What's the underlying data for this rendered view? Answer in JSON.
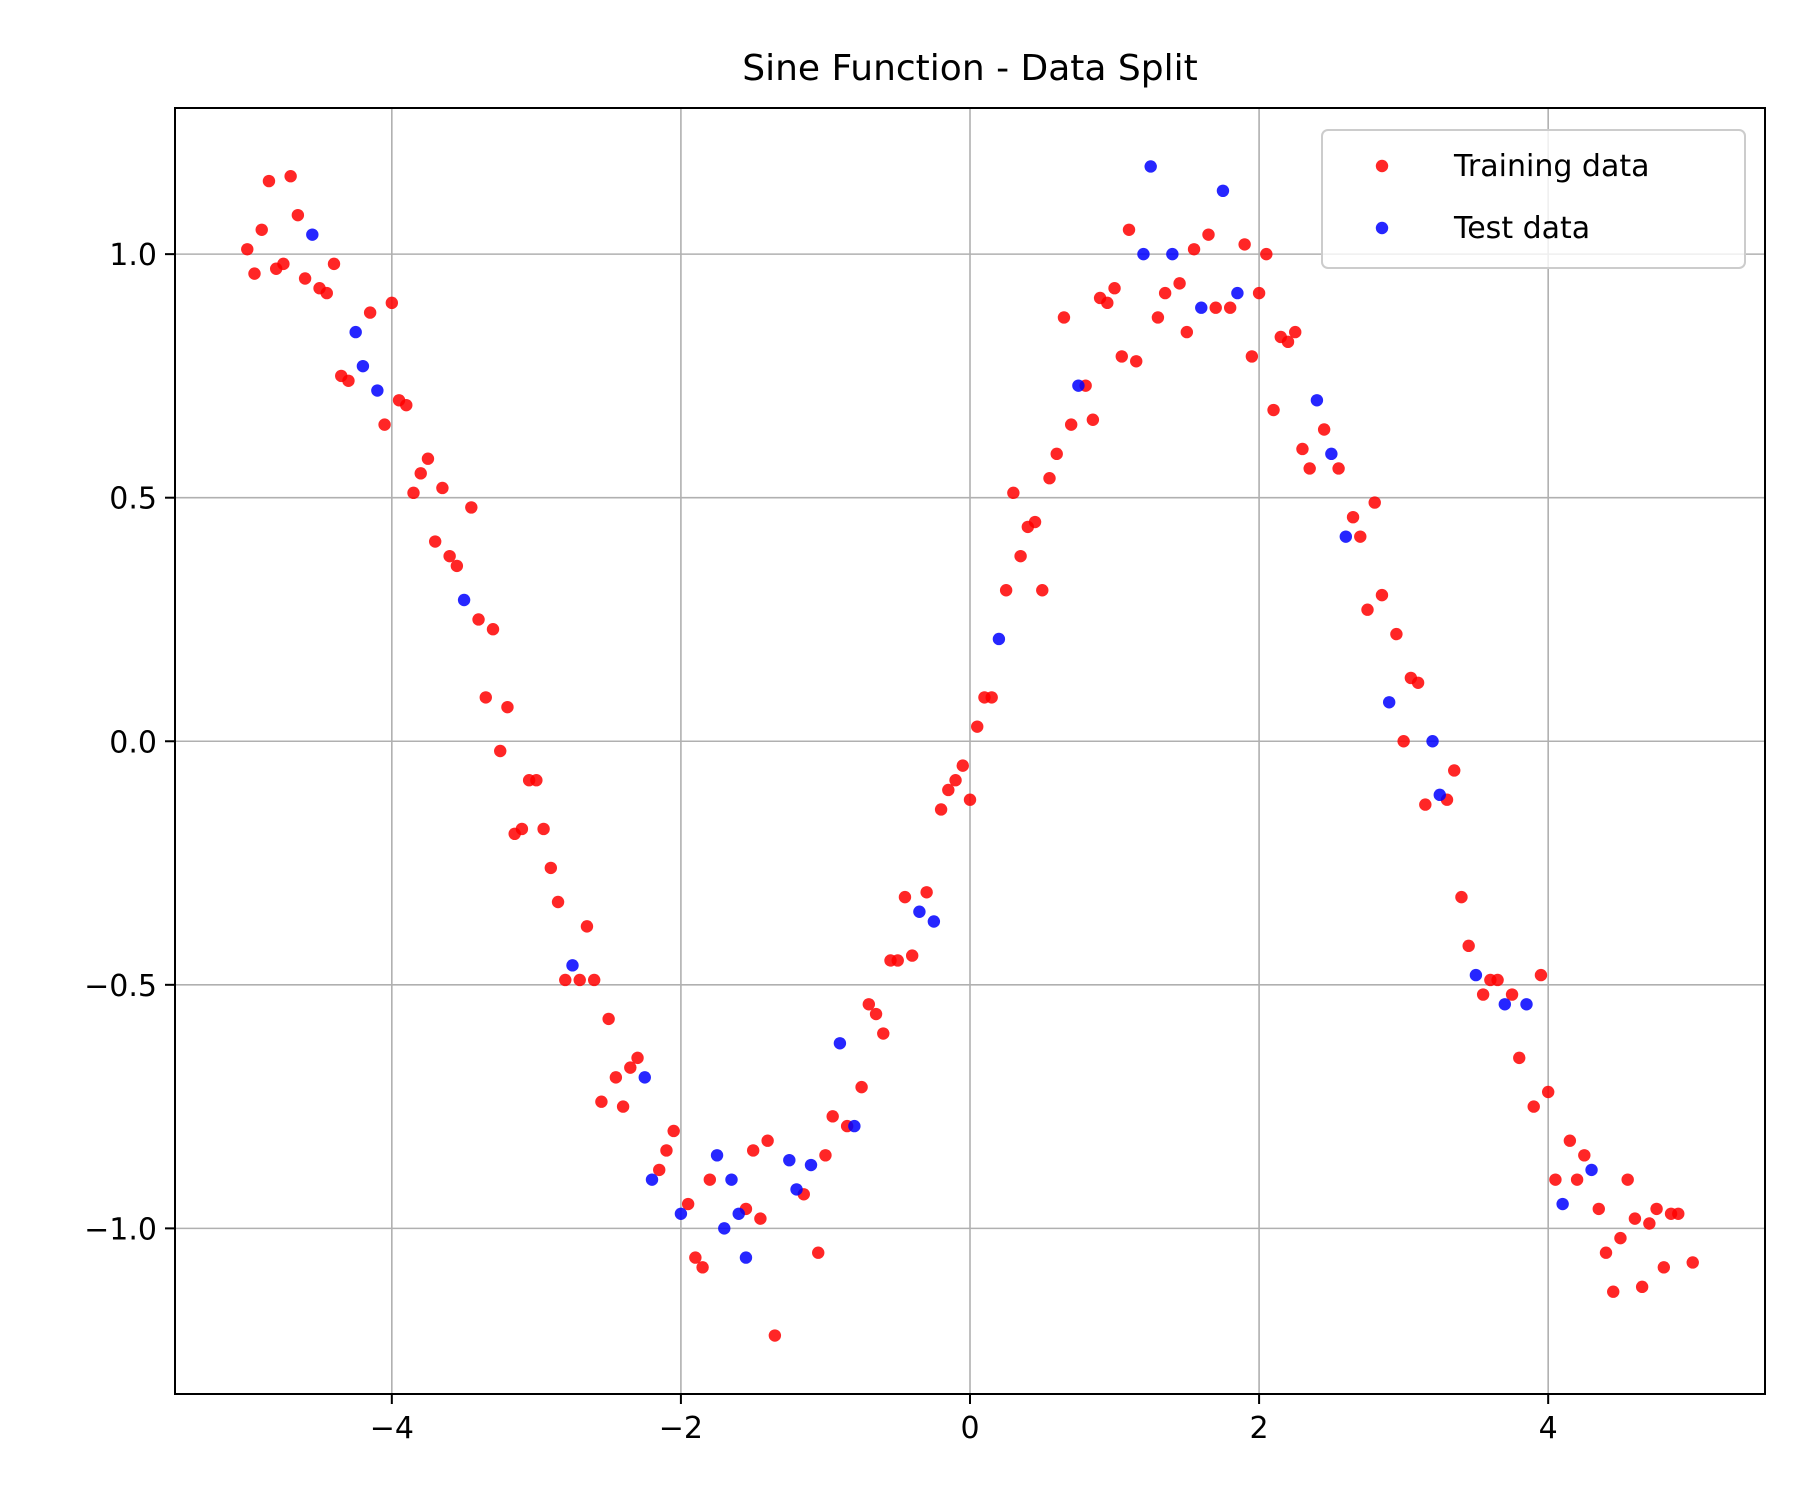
{
  "chart_data": {
    "type": "scatter",
    "title": "Sine Function - Data Split",
    "xlabel": "",
    "ylabel": "",
    "xlim": [
      -5.5,
      5.5
    ],
    "ylim": [
      -1.34,
      1.3
    ],
    "xticks": [
      -4,
      -2,
      0,
      2,
      4
    ],
    "yticks": [
      -1.0,
      -0.5,
      0.0,
      0.5,
      1.0
    ],
    "xtick_labels": [
      "−4",
      "−2",
      "0",
      "2",
      "4"
    ],
    "ytick_labels": [
      "−1.0",
      "−0.5",
      "0.0",
      "0.5",
      "1.0"
    ],
    "grid": true,
    "legend_position": "top-right",
    "series": [
      {
        "name": "Training data",
        "color": "#ff0000",
        "points": [
          [
            -5.0,
            1.01
          ],
          [
            -4.95,
            0.96
          ],
          [
            -4.9,
            1.05
          ],
          [
            -4.85,
            1.15
          ],
          [
            -4.8,
            0.97
          ],
          [
            -4.75,
            0.98
          ],
          [
            -4.7,
            1.16
          ],
          [
            -4.65,
            1.08
          ],
          [
            -4.6,
            0.95
          ],
          [
            -4.5,
            0.93
          ],
          [
            -4.45,
            0.92
          ],
          [
            -4.4,
            0.98
          ],
          [
            -4.35,
            0.75
          ],
          [
            -4.3,
            0.74
          ],
          [
            -4.15,
            0.88
          ],
          [
            -4.05,
            0.65
          ],
          [
            -4.0,
            0.9
          ],
          [
            -3.95,
            0.7
          ],
          [
            -3.9,
            0.69
          ],
          [
            -3.85,
            0.51
          ],
          [
            -3.8,
            0.55
          ],
          [
            -3.75,
            0.58
          ],
          [
            -3.7,
            0.41
          ],
          [
            -3.65,
            0.52
          ],
          [
            -3.6,
            0.38
          ],
          [
            -3.55,
            0.36
          ],
          [
            -3.45,
            0.48
          ],
          [
            -3.4,
            0.25
          ],
          [
            -3.3,
            0.23
          ],
          [
            -3.35,
            0.09
          ],
          [
            -3.25,
            -0.02
          ],
          [
            -3.2,
            0.07
          ],
          [
            -3.15,
            -0.19
          ],
          [
            -3.1,
            -0.18
          ],
          [
            -3.05,
            -0.08
          ],
          [
            -3.0,
            -0.08
          ],
          [
            -2.95,
            -0.18
          ],
          [
            -2.9,
            -0.26
          ],
          [
            -2.85,
            -0.33
          ],
          [
            -2.8,
            -0.49
          ],
          [
            -2.7,
            -0.49
          ],
          [
            -2.65,
            -0.38
          ],
          [
            -2.6,
            -0.49
          ],
          [
            -2.55,
            -0.74
          ],
          [
            -2.5,
            -0.57
          ],
          [
            -2.45,
            -0.69
          ],
          [
            -2.4,
            -0.75
          ],
          [
            -2.35,
            -0.67
          ],
          [
            -2.3,
            -0.65
          ],
          [
            -2.15,
            -0.88
          ],
          [
            -2.1,
            -0.84
          ],
          [
            -2.05,
            -0.8
          ],
          [
            -1.95,
            -0.95
          ],
          [
            -1.9,
            -1.06
          ],
          [
            -1.85,
            -1.08
          ],
          [
            -1.8,
            -0.9
          ],
          [
            -1.55,
            -0.96
          ],
          [
            -1.5,
            -0.84
          ],
          [
            -1.45,
            -0.98
          ],
          [
            -1.4,
            -0.82
          ],
          [
            -1.35,
            -1.22
          ],
          [
            -1.15,
            -0.93
          ],
          [
            -1.05,
            -1.05
          ],
          [
            -1.0,
            -0.85
          ],
          [
            -0.95,
            -0.77
          ],
          [
            -0.85,
            -0.79
          ],
          [
            -0.75,
            -0.71
          ],
          [
            -0.7,
            -0.54
          ],
          [
            -0.65,
            -0.56
          ],
          [
            -0.6,
            -0.6
          ],
          [
            -0.55,
            -0.45
          ],
          [
            -0.5,
            -0.45
          ],
          [
            -0.45,
            -0.32
          ],
          [
            -0.4,
            -0.44
          ],
          [
            -0.3,
            -0.31
          ],
          [
            -0.2,
            -0.14
          ],
          [
            -0.15,
            -0.1
          ],
          [
            -0.1,
            -0.08
          ],
          [
            -0.05,
            -0.05
          ],
          [
            0.0,
            -0.12
          ],
          [
            0.05,
            0.03
          ],
          [
            0.1,
            0.09
          ],
          [
            0.15,
            0.09
          ],
          [
            0.25,
            0.31
          ],
          [
            0.3,
            0.51
          ],
          [
            0.35,
            0.38
          ],
          [
            0.4,
            0.44
          ],
          [
            0.45,
            0.45
          ],
          [
            0.5,
            0.31
          ],
          [
            0.55,
            0.54
          ],
          [
            0.6,
            0.59
          ],
          [
            0.65,
            0.87
          ],
          [
            0.7,
            0.65
          ],
          [
            0.8,
            0.73
          ],
          [
            0.85,
            0.66
          ],
          [
            0.9,
            0.91
          ],
          [
            0.95,
            0.9
          ],
          [
            1.0,
            0.93
          ],
          [
            1.05,
            0.79
          ],
          [
            1.1,
            1.05
          ],
          [
            1.15,
            0.78
          ],
          [
            1.3,
            0.87
          ],
          [
            1.35,
            0.92
          ],
          [
            1.45,
            0.94
          ],
          [
            1.5,
            0.84
          ],
          [
            1.55,
            1.01
          ],
          [
            1.65,
            1.04
          ],
          [
            1.7,
            0.89
          ],
          [
            1.8,
            0.89
          ],
          [
            1.9,
            1.02
          ],
          [
            1.95,
            0.79
          ],
          [
            2.0,
            0.92
          ],
          [
            2.05,
            1.0
          ],
          [
            2.1,
            0.68
          ],
          [
            2.15,
            0.83
          ],
          [
            2.2,
            0.82
          ],
          [
            2.25,
            0.84
          ],
          [
            2.3,
            0.6
          ],
          [
            2.35,
            0.56
          ],
          [
            2.45,
            0.64
          ],
          [
            2.55,
            0.56
          ],
          [
            2.65,
            0.46
          ],
          [
            2.7,
            0.42
          ],
          [
            2.75,
            0.27
          ],
          [
            2.8,
            0.49
          ],
          [
            2.85,
            0.3
          ],
          [
            2.95,
            0.22
          ],
          [
            3.0,
            0.0
          ],
          [
            3.05,
            0.13
          ],
          [
            3.1,
            0.12
          ],
          [
            3.15,
            -0.13
          ],
          [
            3.3,
            -0.12
          ],
          [
            3.35,
            -0.06
          ],
          [
            3.4,
            -0.32
          ],
          [
            3.45,
            -0.42
          ],
          [
            3.55,
            -0.52
          ],
          [
            3.6,
            -0.49
          ],
          [
            3.65,
            -0.49
          ],
          [
            3.75,
            -0.52
          ],
          [
            3.8,
            -0.65
          ],
          [
            3.9,
            -0.75
          ],
          [
            3.95,
            -0.48
          ],
          [
            4.0,
            -0.72
          ],
          [
            4.05,
            -0.9
          ],
          [
            4.15,
            -0.82
          ],
          [
            4.2,
            -0.9
          ],
          [
            4.25,
            -0.85
          ],
          [
            4.35,
            -0.96
          ],
          [
            4.4,
            -1.05
          ],
          [
            4.45,
            -1.13
          ],
          [
            4.5,
            -1.02
          ],
          [
            4.55,
            -0.9
          ],
          [
            4.6,
            -0.98
          ],
          [
            4.65,
            -1.12
          ],
          [
            4.7,
            -0.99
          ],
          [
            4.75,
            -0.96
          ],
          [
            4.8,
            -1.08
          ],
          [
            4.85,
            -0.97
          ],
          [
            4.9,
            -0.97
          ],
          [
            5.0,
            -1.07
          ]
        ]
      },
      {
        "name": "Test data",
        "color": "#0000ff",
        "points": [
          [
            -4.55,
            1.04
          ],
          [
            -4.25,
            0.84
          ],
          [
            -4.2,
            0.77
          ],
          [
            -4.1,
            0.72
          ],
          [
            -3.5,
            0.29
          ],
          [
            -2.75,
            -0.46
          ],
          [
            -2.25,
            -0.69
          ],
          [
            -2.2,
            -0.9
          ],
          [
            -2.0,
            -0.97
          ],
          [
            -1.75,
            -0.85
          ],
          [
            -1.7,
            -1.0
          ],
          [
            -1.65,
            -0.9
          ],
          [
            -1.6,
            -0.97
          ],
          [
            -1.55,
            -1.06
          ],
          [
            -1.25,
            -0.86
          ],
          [
            -1.2,
            -0.92
          ],
          [
            -1.1,
            -0.87
          ],
          [
            -0.9,
            -0.62
          ],
          [
            -0.8,
            -0.79
          ],
          [
            -0.35,
            -0.35
          ],
          [
            -0.25,
            -0.37
          ],
          [
            0.2,
            0.21
          ],
          [
            0.75,
            0.73
          ],
          [
            1.2,
            1.0
          ],
          [
            1.25,
            1.18
          ],
          [
            1.4,
            1.0
          ],
          [
            1.6,
            0.89
          ],
          [
            1.75,
            1.13
          ],
          [
            1.85,
            0.92
          ],
          [
            2.4,
            0.7
          ],
          [
            2.5,
            0.59
          ],
          [
            2.6,
            0.42
          ],
          [
            2.9,
            0.08
          ],
          [
            3.2,
            0.0
          ],
          [
            3.25,
            -0.11
          ],
          [
            3.5,
            -0.48
          ],
          [
            3.7,
            -0.54
          ],
          [
            3.85,
            -0.54
          ],
          [
            4.1,
            -0.95
          ],
          [
            4.3,
            -0.88
          ]
        ]
      }
    ]
  }
}
